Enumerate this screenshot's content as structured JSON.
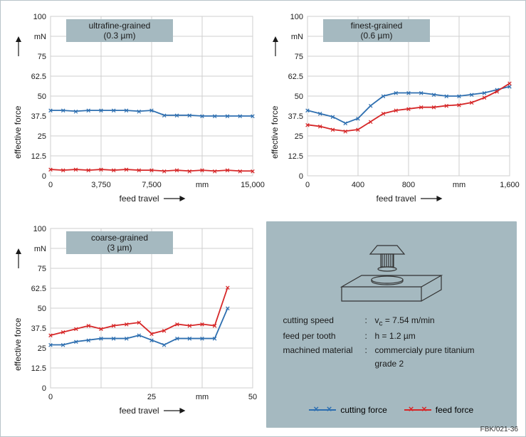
{
  "figure_id": "FBK/021-36",
  "colors": {
    "cutting": "#2e6fb0",
    "feed": "#d62728",
    "grid": "#cfcfcf",
    "axis": "#333333",
    "label_bg": "#a5b9c0",
    "info_bg": "#a5b9c0",
    "frame_border": "#b8c4c9",
    "text": "#1a1a1a"
  },
  "y_axis": {
    "label": "effective force",
    "unit": "mN",
    "min": 0,
    "max": 100,
    "step": 12.5,
    "ticks": [
      0,
      12.5,
      25,
      37.5,
      50,
      62.5,
      75,
      "mN",
      100
    ]
  },
  "x_axis_label": "feed travel",
  "charts": [
    {
      "key": "ultrafine",
      "title_lines": [
        "ultrafine-grained",
        "(0.3 µm)"
      ],
      "x": {
        "min": 0,
        "max": 15000,
        "step": 3750,
        "ticks": [
          0,
          "3,750",
          "7,500",
          "mm",
          "15,000"
        ]
      },
      "series": {
        "cutting": [
          [
            0,
            41
          ],
          [
            938,
            41
          ],
          [
            1875,
            40.5
          ],
          [
            2813,
            41
          ],
          [
            3750,
            41
          ],
          [
            4688,
            41
          ],
          [
            5625,
            41
          ],
          [
            6563,
            40.5
          ],
          [
            7500,
            41
          ],
          [
            8438,
            38
          ],
          [
            9375,
            38
          ],
          [
            10313,
            38
          ],
          [
            11250,
            37.5
          ],
          [
            12188,
            37.5
          ],
          [
            13125,
            37.5
          ],
          [
            14063,
            37.5
          ],
          [
            15000,
            37.5
          ]
        ],
        "feed": [
          [
            0,
            4
          ],
          [
            938,
            3.5
          ],
          [
            1875,
            4
          ],
          [
            2813,
            3.5
          ],
          [
            3750,
            4
          ],
          [
            4688,
            3.5
          ],
          [
            5625,
            4
          ],
          [
            6563,
            3.5
          ],
          [
            7500,
            3.5
          ],
          [
            8438,
            3
          ],
          [
            9375,
            3.5
          ],
          [
            10313,
            3
          ],
          [
            11250,
            3.5
          ],
          [
            12188,
            3
          ],
          [
            13125,
            3.5
          ],
          [
            14063,
            3
          ],
          [
            15000,
            3
          ]
        ]
      }
    },
    {
      "key": "finest",
      "title_lines": [
        "finest-grained",
        "(0.6 µm)"
      ],
      "x": {
        "min": 0,
        "max": 1600,
        "step": 400,
        "ticks": [
          0,
          400,
          800,
          "mm",
          "1,600"
        ]
      },
      "series": {
        "cutting": [
          [
            0,
            41
          ],
          [
            100,
            39
          ],
          [
            200,
            37
          ],
          [
            300,
            33
          ],
          [
            400,
            36
          ],
          [
            500,
            44
          ],
          [
            600,
            50
          ],
          [
            700,
            52
          ],
          [
            800,
            52
          ],
          [
            900,
            52
          ],
          [
            1000,
            51
          ],
          [
            1100,
            50
          ],
          [
            1200,
            50
          ],
          [
            1300,
            51
          ],
          [
            1400,
            52
          ],
          [
            1500,
            54
          ],
          [
            1600,
            56
          ]
        ],
        "feed": [
          [
            0,
            32
          ],
          [
            100,
            31
          ],
          [
            200,
            29
          ],
          [
            300,
            28
          ],
          [
            400,
            29
          ],
          [
            500,
            34
          ],
          [
            600,
            39
          ],
          [
            700,
            41
          ],
          [
            800,
            42
          ],
          [
            900,
            43
          ],
          [
            1000,
            43
          ],
          [
            1100,
            44
          ],
          [
            1200,
            44.5
          ],
          [
            1300,
            46
          ],
          [
            1400,
            49
          ],
          [
            1500,
            53
          ],
          [
            1600,
            58
          ]
        ]
      }
    },
    {
      "key": "coarse",
      "title_lines": [
        "coarse-grained",
        "(3 µm)"
      ],
      "x": {
        "min": 0,
        "max": 50,
        "step": 12.5,
        "ticks": [
          0,
          "",
          "25",
          "mm",
          50
        ]
      },
      "series": {
        "cutting": [
          [
            0,
            27
          ],
          [
            3.1,
            27
          ],
          [
            6.3,
            29
          ],
          [
            9.4,
            30
          ],
          [
            12.5,
            31
          ],
          [
            15.6,
            31
          ],
          [
            18.8,
            31
          ],
          [
            21.9,
            33
          ],
          [
            25,
            30
          ],
          [
            28.1,
            27
          ],
          [
            31.3,
            31
          ],
          [
            34.4,
            31
          ],
          [
            37.5,
            31
          ],
          [
            40.6,
            31
          ],
          [
            43.8,
            50
          ]
        ],
        "feed": [
          [
            0,
            33
          ],
          [
            3.1,
            35
          ],
          [
            6.3,
            37
          ],
          [
            9.4,
            39
          ],
          [
            12.5,
            37
          ],
          [
            15.6,
            39
          ],
          [
            18.8,
            40
          ],
          [
            21.9,
            41
          ],
          [
            25,
            34
          ],
          [
            28.1,
            36
          ],
          [
            31.3,
            40
          ],
          [
            34.4,
            39
          ],
          [
            37.5,
            40
          ],
          [
            40.6,
            39
          ],
          [
            43.8,
            63
          ]
        ]
      }
    }
  ],
  "info": {
    "rows": [
      {
        "k": "cutting speed",
        "v_html": "v_c = 7.54 m/min",
        "v_pre": "v",
        "v_sub": "c",
        "v_rest": " = 7.54 m/min"
      },
      {
        "k": "feed per tooth",
        "v": "h = 1.2 µm"
      },
      {
        "k": "machined material",
        "v": "commercialy pure titanium grade 2"
      }
    ],
    "legend": [
      {
        "label": "cutting force",
        "color": "#2e6fb0"
      },
      {
        "label": "feed force",
        "color": "#d62728"
      }
    ]
  },
  "style": {
    "font_family": "Arial, Helvetica, sans-serif",
    "tick_font_pt": 11,
    "title_font_pt": 12,
    "line_width": 1.8,
    "marker": "×",
    "marker_size_pt": 11
  }
}
